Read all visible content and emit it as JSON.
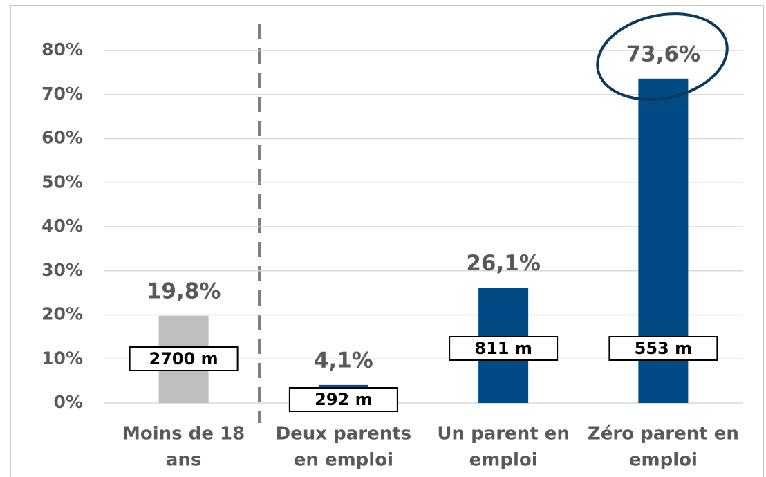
{
  "chart_data": {
    "type": "bar",
    "categories": [
      [
        "Moins de 18",
        "ans"
      ],
      [
        "Deux parents",
        "en emploi"
      ],
      [
        "Un parent en",
        "emploi"
      ],
      [
        "Zéro parent en",
        "emploi"
      ]
    ],
    "values": [
      19.8,
      4.1,
      26.1,
      73.6
    ],
    "value_labels": [
      "19,8%",
      "4,1%",
      "26,1%",
      "73,6%"
    ],
    "population_labels": [
      "2700 m",
      "292 m",
      "811 m",
      "553 m"
    ],
    "colors": [
      "#c0bfbf",
      "#004a86",
      "#004a86",
      "#004a86"
    ],
    "ylim": [
      0,
      80
    ],
    "yticks": [
      {
        "value": 0,
        "label": "0%"
      },
      {
        "value": 10,
        "label": "10%"
      },
      {
        "value": 20,
        "label": "20%"
      },
      {
        "value": 30,
        "label": "30%"
      },
      {
        "value": 40,
        "label": "40%"
      },
      {
        "value": 50,
        "label": "50%"
      },
      {
        "value": 60,
        "label": "60%"
      },
      {
        "value": 70,
        "label": "70%"
      },
      {
        "value": 80,
        "label": "80%"
      }
    ],
    "grid": true
  }
}
